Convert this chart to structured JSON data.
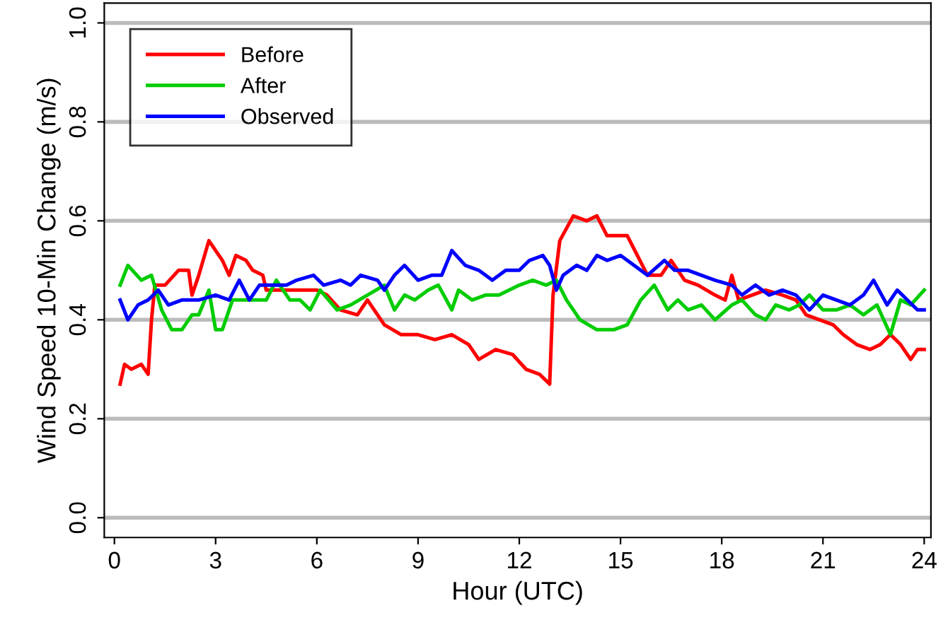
{
  "chart_data": {
    "type": "line",
    "xlabel": "Hour (UTC)",
    "ylabel": "Wind Speed 10-Min Change (m/s)",
    "xlim": [
      -0.3,
      24.2
    ],
    "xticks": [
      0,
      3,
      6,
      9,
      12,
      15,
      18,
      21,
      24
    ],
    "ylim": [
      -0.04,
      1.04
    ],
    "yticks": [
      {
        "value": 0,
        "label": "0.0"
      },
      0.2,
      0.4,
      0.6,
      0.8,
      {
        "value": 1,
        "label": "1.0"
      }
    ],
    "grid": "y",
    "legend": "top left",
    "series": [
      {
        "name": "Before",
        "color": "#ff0000",
        "x": [
          0.17,
          0.3,
          0.5,
          0.8,
          1.0,
          1.1,
          1.2,
          1.5,
          1.9,
          2.2,
          2.3,
          2.5,
          2.8,
          3.2,
          3.4,
          3.6,
          3.9,
          4.1,
          4.4,
          4.5,
          5.0,
          5.5,
          6.0,
          6.3,
          6.7,
          7.2,
          7.5,
          8.0,
          8.5,
          9.0,
          9.5,
          10.0,
          10.5,
          10.8,
          11.3,
          11.8,
          12.2,
          12.6,
          12.9,
          13.0,
          13.2,
          13.6,
          14.0,
          14.3,
          14.6,
          15.2,
          15.5,
          15.8,
          16.2,
          16.5,
          16.9,
          17.3,
          17.8,
          18.1,
          18.3,
          18.5,
          18.9,
          19.3,
          19.8,
          20.2,
          20.5,
          20.9,
          21.3,
          21.6,
          22.0,
          22.4,
          22.7,
          23.0,
          23.3,
          23.6,
          23.8,
          24.0
        ],
        "values": [
          0.27,
          0.31,
          0.3,
          0.31,
          0.29,
          0.4,
          0.47,
          0.47,
          0.5,
          0.5,
          0.45,
          0.49,
          0.56,
          0.52,
          0.49,
          0.53,
          0.52,
          0.5,
          0.49,
          0.46,
          0.46,
          0.46,
          0.46,
          0.45,
          0.42,
          0.41,
          0.44,
          0.39,
          0.37,
          0.37,
          0.36,
          0.37,
          0.35,
          0.32,
          0.34,
          0.33,
          0.3,
          0.29,
          0.27,
          0.45,
          0.56,
          0.61,
          0.6,
          0.61,
          0.57,
          0.57,
          0.53,
          0.49,
          0.49,
          0.52,
          0.48,
          0.47,
          0.45,
          0.44,
          0.49,
          0.44,
          0.45,
          0.46,
          0.45,
          0.44,
          0.41,
          0.4,
          0.39,
          0.37,
          0.35,
          0.34,
          0.35,
          0.37,
          0.35,
          0.32,
          0.34,
          0.34
        ]
      },
      {
        "name": "After",
        "color": "#00cc00",
        "x": [
          0.17,
          0.4,
          0.8,
          1.1,
          1.4,
          1.7,
          2.0,
          2.3,
          2.5,
          2.8,
          3.0,
          3.2,
          3.5,
          4.2,
          4.5,
          4.8,
          5.2,
          5.5,
          5.8,
          6.1,
          6.6,
          7.0,
          7.5,
          8.0,
          8.3,
          8.6,
          8.9,
          9.3,
          9.6,
          10.0,
          10.2,
          10.6,
          11.0,
          11.4,
          12.0,
          12.4,
          12.8,
          13.1,
          13.4,
          13.8,
          14.3,
          14.8,
          15.2,
          15.6,
          16.0,
          16.4,
          16.7,
          17.0,
          17.4,
          17.8,
          18.3,
          18.6,
          19.0,
          19.3,
          19.6,
          20.0,
          20.3,
          20.6,
          21.0,
          21.4,
          21.8,
          22.2,
          22.6,
          23.0,
          23.3,
          23.6,
          24.0
        ],
        "values": [
          0.47,
          0.51,
          0.48,
          0.49,
          0.42,
          0.38,
          0.38,
          0.41,
          0.41,
          0.46,
          0.38,
          0.38,
          0.44,
          0.44,
          0.44,
          0.48,
          0.44,
          0.44,
          0.42,
          0.46,
          0.42,
          0.43,
          0.45,
          0.47,
          0.42,
          0.45,
          0.44,
          0.46,
          0.47,
          0.42,
          0.46,
          0.44,
          0.45,
          0.45,
          0.47,
          0.48,
          0.47,
          0.48,
          0.44,
          0.4,
          0.38,
          0.38,
          0.39,
          0.44,
          0.47,
          0.42,
          0.44,
          0.42,
          0.43,
          0.4,
          0.43,
          0.44,
          0.41,
          0.4,
          0.43,
          0.42,
          0.43,
          0.45,
          0.42,
          0.42,
          0.43,
          0.41,
          0.43,
          0.37,
          0.44,
          0.43,
          0.46
        ]
      },
      {
        "name": "Observed",
        "color": "#0000ff",
        "x": [
          0.17,
          0.4,
          0.7,
          1.0,
          1.3,
          1.6,
          2.0,
          2.5,
          3.0,
          3.4,
          3.7,
          4.0,
          4.3,
          4.6,
          5.1,
          5.4,
          5.9,
          6.2,
          6.7,
          7.0,
          7.3,
          7.8,
          8.0,
          8.3,
          8.6,
          9.0,
          9.4,
          9.7,
          10.0,
          10.4,
          10.8,
          11.2,
          11.6,
          12.0,
          12.3,
          12.7,
          12.9,
          13.1,
          13.3,
          13.7,
          14.0,
          14.3,
          14.6,
          15.0,
          15.4,
          15.8,
          16.3,
          16.6,
          17.0,
          17.4,
          17.8,
          18.3,
          18.6,
          19.0,
          19.4,
          19.8,
          20.2,
          20.6,
          21.0,
          21.4,
          21.8,
          22.2,
          22.5,
          22.9,
          23.2,
          23.5,
          23.8,
          24.0
        ],
        "values": [
          0.44,
          0.4,
          0.43,
          0.44,
          0.46,
          0.43,
          0.44,
          0.44,
          0.45,
          0.44,
          0.48,
          0.44,
          0.47,
          0.47,
          0.47,
          0.48,
          0.49,
          0.47,
          0.48,
          0.47,
          0.49,
          0.48,
          0.46,
          0.49,
          0.51,
          0.48,
          0.49,
          0.49,
          0.54,
          0.51,
          0.5,
          0.48,
          0.5,
          0.5,
          0.52,
          0.53,
          0.51,
          0.46,
          0.49,
          0.51,
          0.5,
          0.53,
          0.52,
          0.53,
          0.51,
          0.49,
          0.52,
          0.5,
          0.5,
          0.49,
          0.48,
          0.47,
          0.45,
          0.47,
          0.45,
          0.46,
          0.45,
          0.42,
          0.45,
          0.44,
          0.43,
          0.45,
          0.48,
          0.43,
          0.46,
          0.44,
          0.42,
          0.42
        ]
      }
    ]
  }
}
